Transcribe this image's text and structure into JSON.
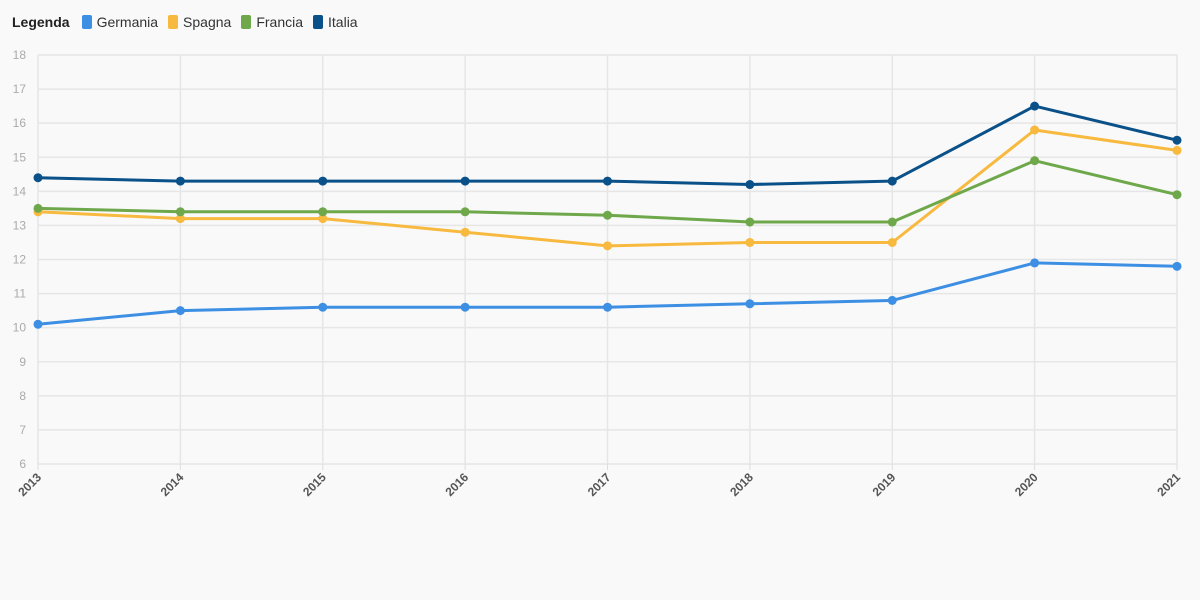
{
  "legend": {
    "title": "Legenda"
  },
  "chart_data": {
    "type": "line",
    "x": [
      "2013",
      "2014",
      "2015",
      "2016",
      "2017",
      "2018",
      "2019",
      "2020",
      "2021"
    ],
    "ylim": [
      6,
      18
    ],
    "yticks": [
      6,
      7,
      8,
      9,
      10,
      11,
      12,
      13,
      14,
      15,
      16,
      17,
      18
    ],
    "grid": true,
    "legend_position": "top-left",
    "series": [
      {
        "name": "Germania",
        "color": "#3d8fe3",
        "values": [
          10.1,
          10.5,
          10.6,
          10.6,
          10.6,
          10.7,
          10.8,
          11.9,
          11.8
        ]
      },
      {
        "name": "Spagna",
        "color": "#f8b93f",
        "values": [
          13.4,
          13.2,
          13.2,
          12.8,
          12.4,
          12.5,
          12.5,
          15.8,
          15.2
        ]
      },
      {
        "name": "Francia",
        "color": "#6fa84b",
        "values": [
          13.5,
          13.4,
          13.4,
          13.4,
          13.3,
          13.1,
          13.1,
          14.9,
          13.9
        ]
      },
      {
        "name": "Italia",
        "color": "#0a5189",
        "values": [
          14.4,
          14.3,
          14.3,
          14.3,
          14.3,
          14.2,
          14.3,
          16.5,
          15.5
        ]
      }
    ]
  }
}
